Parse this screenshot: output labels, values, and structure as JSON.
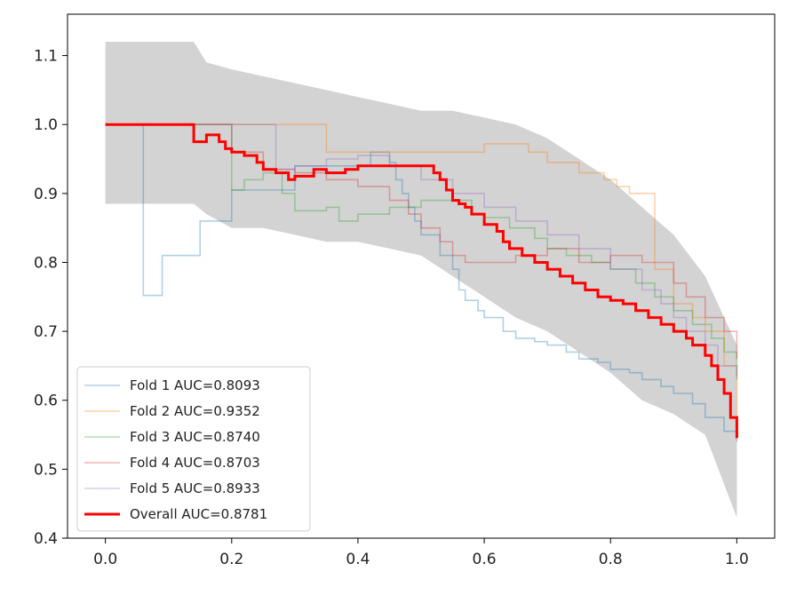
{
  "chart_data": {
    "type": "line",
    "title": "",
    "xlabel": "",
    "ylabel": "",
    "xlim": [
      -0.06,
      1.06
    ],
    "ylim": [
      0.4,
      1.16
    ],
    "xticks": [
      0.0,
      0.2,
      0.4,
      0.6,
      0.8,
      1.0
    ],
    "xtick_labels": [
      "0.0",
      "0.2",
      "0.4",
      "0.6",
      "0.8",
      "1.0"
    ],
    "yticks": [
      0.4,
      0.5,
      0.6,
      0.7,
      0.8,
      0.9,
      1.0,
      1.1
    ],
    "ytick_labels": [
      "0.4",
      "0.5",
      "0.6",
      "0.7",
      "0.8",
      "0.9",
      "1.0",
      "1.1"
    ],
    "grid": false,
    "legend_position": "lower-left",
    "band": {
      "name": "std band",
      "color": "#d3d3d3",
      "x": [
        0.0,
        0.1,
        0.14,
        0.16,
        0.2,
        0.25,
        0.3,
        0.35,
        0.4,
        0.45,
        0.5,
        0.55,
        0.6,
        0.65,
        0.7,
        0.75,
        0.8,
        0.85,
        0.9,
        0.95,
        1.0
      ],
      "upper": [
        1.12,
        1.12,
        1.12,
        1.09,
        1.08,
        1.07,
        1.06,
        1.05,
        1.04,
        1.03,
        1.02,
        1.02,
        1.01,
        1.0,
        0.98,
        0.95,
        0.92,
        0.88,
        0.84,
        0.78,
        0.68
      ],
      "lower": [
        0.885,
        0.885,
        0.885,
        0.87,
        0.85,
        0.85,
        0.84,
        0.83,
        0.83,
        0.82,
        0.81,
        0.78,
        0.75,
        0.72,
        0.7,
        0.67,
        0.64,
        0.6,
        0.58,
        0.55,
        0.43
      ]
    },
    "series": [
      {
        "name": "Fold 1 AUC=0.8093",
        "color": "#1f77b4",
        "width": 1.6,
        "opacity": 0.35,
        "x": [
          0.06,
          0.06,
          0.06,
          0.09,
          0.15,
          0.2,
          0.3,
          0.42,
          0.45,
          0.46,
          0.47,
          0.48,
          0.49,
          0.5,
          0.53,
          0.55,
          0.56,
          0.57,
          0.59,
          0.6,
          0.63,
          0.65,
          0.68,
          0.7,
          0.73,
          0.75,
          0.78,
          0.8,
          0.83,
          0.85,
          0.88,
          0.9,
          0.93,
          0.95,
          0.98,
          1.0
        ],
        "y": [
          1.0,
          1.0,
          0.752,
          0.81,
          0.86,
          0.905,
          0.94,
          0.96,
          0.945,
          0.92,
          0.9,
          0.88,
          0.86,
          0.84,
          0.81,
          0.79,
          0.76,
          0.745,
          0.73,
          0.72,
          0.7,
          0.69,
          0.685,
          0.68,
          0.67,
          0.66,
          0.655,
          0.645,
          0.64,
          0.63,
          0.62,
          0.61,
          0.595,
          0.575,
          0.555,
          0.54
        ]
      },
      {
        "name": "Fold 2 AUC=0.9352",
        "color": "#ff7f0e",
        "width": 1.6,
        "opacity": 0.35,
        "x": [
          0.0,
          0.35,
          0.35,
          0.6,
          0.67,
          0.7,
          0.75,
          0.79,
          0.81,
          0.83,
          0.87,
          0.87,
          0.9,
          0.93,
          0.95,
          0.98,
          1.0
        ],
        "y": [
          1.0,
          1.0,
          0.96,
          0.972,
          0.96,
          0.945,
          0.93,
          0.92,
          0.91,
          0.9,
          0.88,
          0.79,
          0.74,
          0.72,
          0.7,
          0.65,
          0.56
        ]
      },
      {
        "name": "Fold 3 AUC=0.8740",
        "color": "#2ca02c",
        "width": 1.6,
        "opacity": 0.35,
        "x": [
          0.0,
          0.2,
          0.2,
          0.22,
          0.25,
          0.28,
          0.3,
          0.35,
          0.37,
          0.4,
          0.45,
          0.5,
          0.55,
          0.58,
          0.6,
          0.64,
          0.68,
          0.7,
          0.73,
          0.77,
          0.8,
          0.84,
          0.87,
          0.9,
          0.93,
          0.96,
          0.98,
          1.0
        ],
        "y": [
          1.0,
          1.0,
          0.905,
          0.92,
          0.93,
          0.9,
          0.875,
          0.88,
          0.86,
          0.87,
          0.88,
          0.89,
          0.89,
          0.87,
          0.865,
          0.85,
          0.835,
          0.82,
          0.81,
          0.8,
          0.79,
          0.77,
          0.75,
          0.73,
          0.71,
          0.69,
          0.67,
          0.63
        ]
      },
      {
        "name": "Fold 4 AUC=0.8703",
        "color": "#d62728",
        "width": 1.6,
        "opacity": 0.35,
        "x": [
          0.0,
          0.15,
          0.2,
          0.25,
          0.3,
          0.35,
          0.4,
          0.45,
          0.48,
          0.5,
          0.53,
          0.55,
          0.57,
          0.6,
          0.65,
          0.7,
          0.75,
          0.8,
          0.85,
          0.9,
          0.92,
          0.95,
          0.98,
          1.0
        ],
        "y": [
          1.0,
          1.0,
          0.96,
          0.935,
          0.93,
          0.92,
          0.91,
          0.89,
          0.87,
          0.85,
          0.83,
          0.81,
          0.8,
          0.8,
          0.81,
          0.82,
          0.8,
          0.81,
          0.8,
          0.77,
          0.75,
          0.72,
          0.7,
          0.66
        ]
      },
      {
        "name": "Fold 5 AUC=0.8933",
        "color": "#9467bd",
        "width": 1.6,
        "opacity": 0.35,
        "x": [
          0.0,
          0.27,
          0.27,
          0.3,
          0.35,
          0.4,
          0.45,
          0.5,
          0.55,
          0.6,
          0.65,
          0.7,
          0.75,
          0.8,
          0.85,
          0.88,
          0.9,
          0.92,
          0.95,
          0.97,
          1.0
        ],
        "y": [
          1.0,
          1.0,
          0.935,
          0.94,
          0.95,
          0.955,
          0.94,
          0.92,
          0.9,
          0.88,
          0.86,
          0.84,
          0.82,
          0.79,
          0.76,
          0.74,
          0.72,
          0.7,
          0.68,
          0.65,
          0.635
        ]
      },
      {
        "name": "Overall AUC=0.8781",
        "color": "#ff0000",
        "width": 3,
        "opacity": 1,
        "x": [
          0.0,
          0.14,
          0.14,
          0.16,
          0.18,
          0.19,
          0.2,
          0.22,
          0.24,
          0.25,
          0.27,
          0.29,
          0.3,
          0.33,
          0.35,
          0.38,
          0.4,
          0.43,
          0.46,
          0.5,
          0.52,
          0.53,
          0.54,
          0.55,
          0.56,
          0.57,
          0.58,
          0.6,
          0.62,
          0.63,
          0.64,
          0.66,
          0.68,
          0.7,
          0.72,
          0.74,
          0.76,
          0.78,
          0.8,
          0.82,
          0.84,
          0.86,
          0.88,
          0.9,
          0.92,
          0.93,
          0.95,
          0.96,
          0.97,
          0.98,
          0.99,
          1.0
        ],
        "y": [
          1.0,
          1.0,
          0.975,
          0.985,
          0.975,
          0.965,
          0.96,
          0.955,
          0.945,
          0.935,
          0.93,
          0.92,
          0.925,
          0.935,
          0.93,
          0.935,
          0.94,
          0.94,
          0.94,
          0.94,
          0.93,
          0.92,
          0.905,
          0.89,
          0.885,
          0.88,
          0.87,
          0.855,
          0.845,
          0.83,
          0.82,
          0.81,
          0.8,
          0.79,
          0.78,
          0.77,
          0.76,
          0.75,
          0.745,
          0.74,
          0.73,
          0.72,
          0.71,
          0.7,
          0.69,
          0.68,
          0.665,
          0.65,
          0.63,
          0.61,
          0.575,
          0.545
        ]
      }
    ]
  }
}
